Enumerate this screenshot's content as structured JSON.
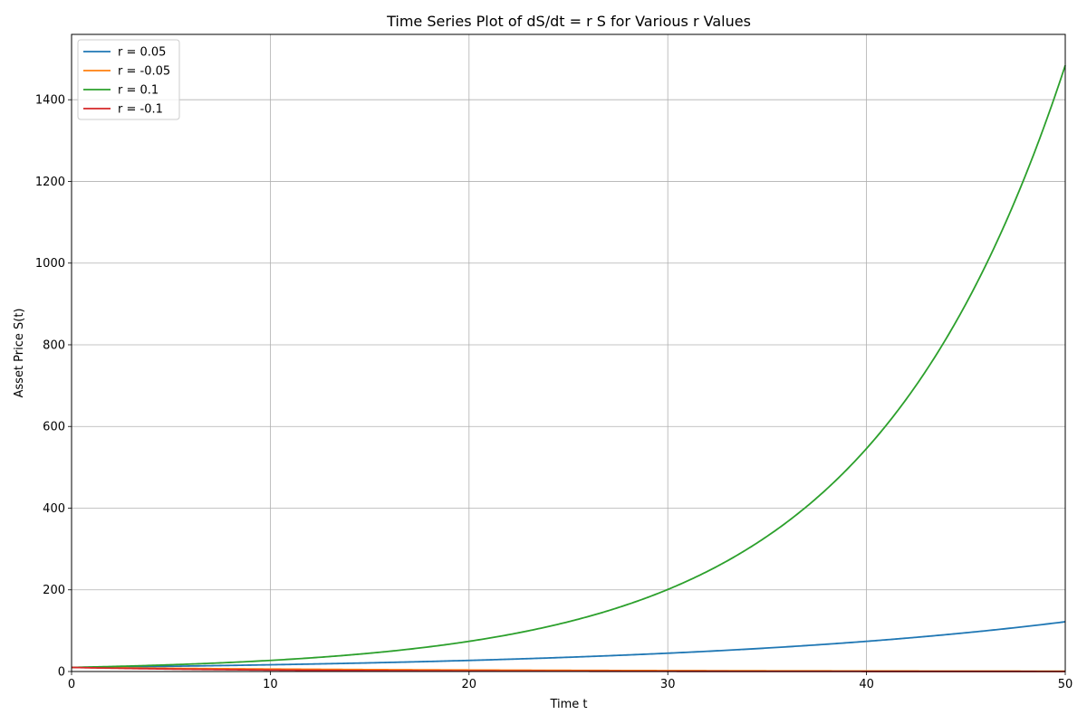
{
  "chart_data": {
    "type": "line",
    "title": "Time Series Plot of dS/dt = r S for Various r Values",
    "xlabel": "Time t",
    "ylabel": "Asset Price S(t)",
    "xlim": [
      0,
      50
    ],
    "ylim": [
      0,
      1560
    ],
    "xticks": [
      0,
      10,
      20,
      30,
      40,
      50
    ],
    "yticks": [
      0,
      200,
      400,
      600,
      800,
      1000,
      1200,
      1400
    ],
    "grid": true,
    "legend_position": "top-left",
    "model": {
      "S0": 10
    },
    "series": [
      {
        "name": "r = 0.05",
        "r": 0.05,
        "color": "#1f77b4"
      },
      {
        "name": "r = -0.05",
        "r": -0.05,
        "color": "#ff7f0e"
      },
      {
        "name": "r = 0.1",
        "r": 0.1,
        "color": "#2ca02c"
      },
      {
        "name": "r = -0.1",
        "r": -0.1,
        "color": "#d62728"
      }
    ]
  }
}
